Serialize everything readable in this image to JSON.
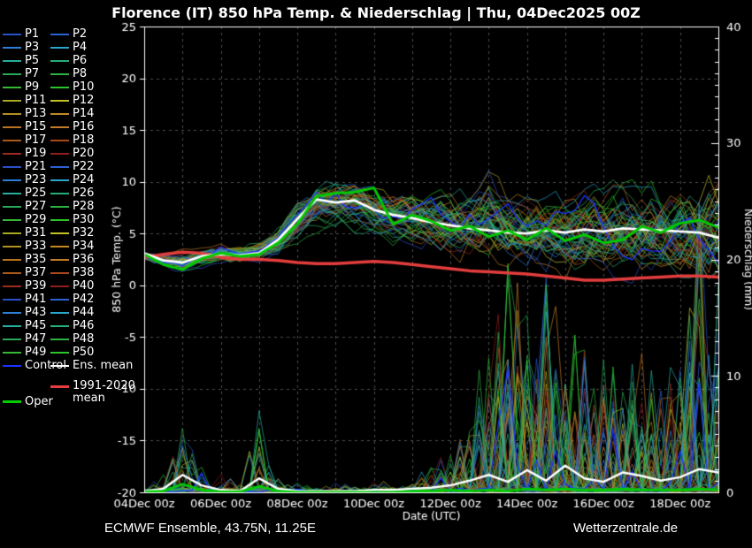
{
  "title": "Florence  (IT)  850 hPa Temp. & Niederschlag | Thu, 04Dec2025 00Z",
  "footer": {
    "left": "ECMWF Ensemble, 43.75N, 11.25E",
    "right": "Wetterzentrale.de"
  },
  "legend": {
    "member_labels": [
      "P1",
      "P2",
      "P3",
      "P4",
      "P5",
      "P6",
      "P7",
      "P8",
      "P9",
      "P10",
      "P11",
      "P12",
      "P13",
      "P14",
      "P15",
      "P16",
      "P17",
      "P18",
      "P19",
      "P20",
      "P21",
      "P22",
      "P23",
      "P24",
      "P25",
      "P26",
      "P27",
      "P28",
      "P29",
      "P30",
      "P31",
      "P32",
      "P33",
      "P34",
      "P35",
      "P36",
      "P37",
      "P38",
      "P39",
      "P40",
      "P41",
      "P42",
      "P43",
      "P44",
      "P45",
      "P46",
      "P47",
      "P48",
      "P49",
      "P50"
    ],
    "control_label": "Control",
    "ens_mean_label": "Ens. mean",
    "climate_label_line1": "1991-2020",
    "climate_label_line2": "mean",
    "oper_label": "Oper"
  },
  "chart_data": {
    "type": "line",
    "title": "Florence  (IT)  850 hPa Temp. & Niederschlag | Thu, 04Dec2025 00Z",
    "x": {
      "label": "Date (UTC)",
      "tick_labels": [
        "04Dec 00z",
        "06Dec 00z",
        "08Dec 00z",
        "10Dec 00z",
        "12Dec 00z",
        "14Dec 00z",
        "16Dec 00z",
        "18Dec 00z"
      ],
      "days_total": 15,
      "step_hours": 12,
      "grid_every_days": 1
    },
    "y_left": {
      "label": "850 hPa Temp. (°C)",
      "min": -20,
      "max": 25,
      "tick_step": 5
    },
    "y_right": {
      "label": "Niederschlag (mm)",
      "min": 0,
      "max": 40,
      "tick_step": 10,
      "minor_step": 1
    },
    "colors": {
      "background": "#000000",
      "frame": "#ffffff",
      "grid": "#4f4f4f",
      "ens_mean": "#ffffff",
      "oper": "#00cc00",
      "control": "#1a35ff",
      "climate_mean": "#e43d3d",
      "member_palette": [
        "#2b50c8",
        "#2b62d4",
        "#2b7fd4",
        "#29a6cc",
        "#26ad9d",
        "#26ad7a",
        "#2aa857",
        "#2db140",
        "#36b836",
        "#2cc42c",
        "#a8a823",
        "#c2c226",
        "#b39122",
        "#c28a22",
        "#ba7322",
        "#c47c28",
        "#a85a1c",
        "#a8481c",
        "#9c2c20",
        "#8f1e1e"
      ]
    },
    "members": {
      "count": 50,
      "palette_cycle": 20
    },
    "series": {
      "ens_mean_temp": [
        3.1,
        2.4,
        2.2,
        2.8,
        3.0,
        2.9,
        3.1,
        4.4,
        6.4,
        8.3,
        8.0,
        8.2,
        7.3,
        6.8,
        6.5,
        6.1,
        5.8,
        5.5,
        5.3,
        5.1,
        5.0,
        5.3,
        5.1,
        5.4,
        5.2,
        5.5,
        5.4,
        5.3,
        5.2,
        5.1,
        4.6
      ],
      "oper_temp": [
        3.0,
        2.0,
        1.5,
        2.6,
        3.1,
        2.8,
        3.0,
        4.1,
        5.9,
        8.6,
        8.9,
        9.0,
        9.4,
        5.9,
        6.8,
        6.2,
        5.3,
        5.7,
        4.7,
        5.3,
        4.4,
        5.5,
        4.3,
        4.9,
        4.1,
        4.4,
        5.7,
        5.1,
        6.0,
        6.3,
        5.6
      ],
      "climate_mean_temp": [
        2.7,
        3.0,
        3.2,
        3.1,
        2.7,
        2.5,
        2.5,
        2.4,
        2.2,
        2.1,
        2.1,
        2.2,
        2.3,
        2.2,
        2.0,
        1.8,
        1.6,
        1.4,
        1.3,
        1.2,
        1.1,
        0.9,
        0.7,
        0.5,
        0.5,
        0.6,
        0.7,
        0.8,
        0.9,
        0.9,
        0.8
      ],
      "temp_envelope_min": [
        2.4,
        1.6,
        0.8,
        1.4,
        2.1,
        1.9,
        2.1,
        2.7,
        3.7,
        4.9,
        4.7,
        4.4,
        3.9,
        3.4,
        3.1,
        2.7,
        2.1,
        1.7,
        1.4,
        1.1,
        0.7,
        0.4,
        0.2,
        0.0,
        -0.4,
        -0.6,
        -0.4,
        -0.1,
        -0.6,
        -1.2,
        -2.2
      ],
      "temp_envelope_max": [
        3.4,
        3.3,
        3.6,
        3.9,
        4.1,
        4.0,
        4.4,
        6.0,
        8.6,
        10.4,
        10.9,
        11.0,
        10.4,
        10.0,
        9.7,
        9.4,
        9.7,
        10.0,
        11.8,
        10.4,
        10.0,
        9.8,
        10.0,
        10.2,
        10.4,
        10.8,
        10.4,
        11.0,
        11.2,
        11.5,
        14.0
      ],
      "ens_mean_precip": [
        0.1,
        0.3,
        1.5,
        0.6,
        0.2,
        0.1,
        1.2,
        0.3,
        0.1,
        0.1,
        0.1,
        0.1,
        0.2,
        0.2,
        0.3,
        0.4,
        0.6,
        1.0,
        1.5,
        0.9,
        1.9,
        1.0,
        2.3,
        1.2,
        0.9,
        1.7,
        1.4,
        1.0,
        1.3,
        2.0,
        1.7
      ],
      "oper_precip": [
        0.05,
        0.1,
        0.7,
        0.2,
        0.05,
        0.05,
        0.5,
        0.1,
        0,
        0,
        0,
        0,
        0,
        0,
        0.1,
        0.1,
        0.2,
        0.1,
        0.2,
        0.1,
        0.3,
        0.2,
        0.3,
        0.2,
        0.2,
        0.3,
        0.2,
        0.2,
        0.2,
        0.3,
        0.2
      ],
      "precip_envelope_max": [
        0.5,
        1.5,
        5.5,
        3.0,
        1.5,
        0.8,
        7.0,
        1.5,
        0.8,
        0.5,
        0.8,
        0.6,
        1.2,
        1.0,
        2.0,
        2.5,
        4.0,
        9.0,
        12.0,
        20.0,
        16.0,
        22.0,
        12.0,
        15.0,
        13.0,
        10.0,
        12.0,
        10.0,
        12.0,
        25.0,
        18.0
      ]
    }
  }
}
